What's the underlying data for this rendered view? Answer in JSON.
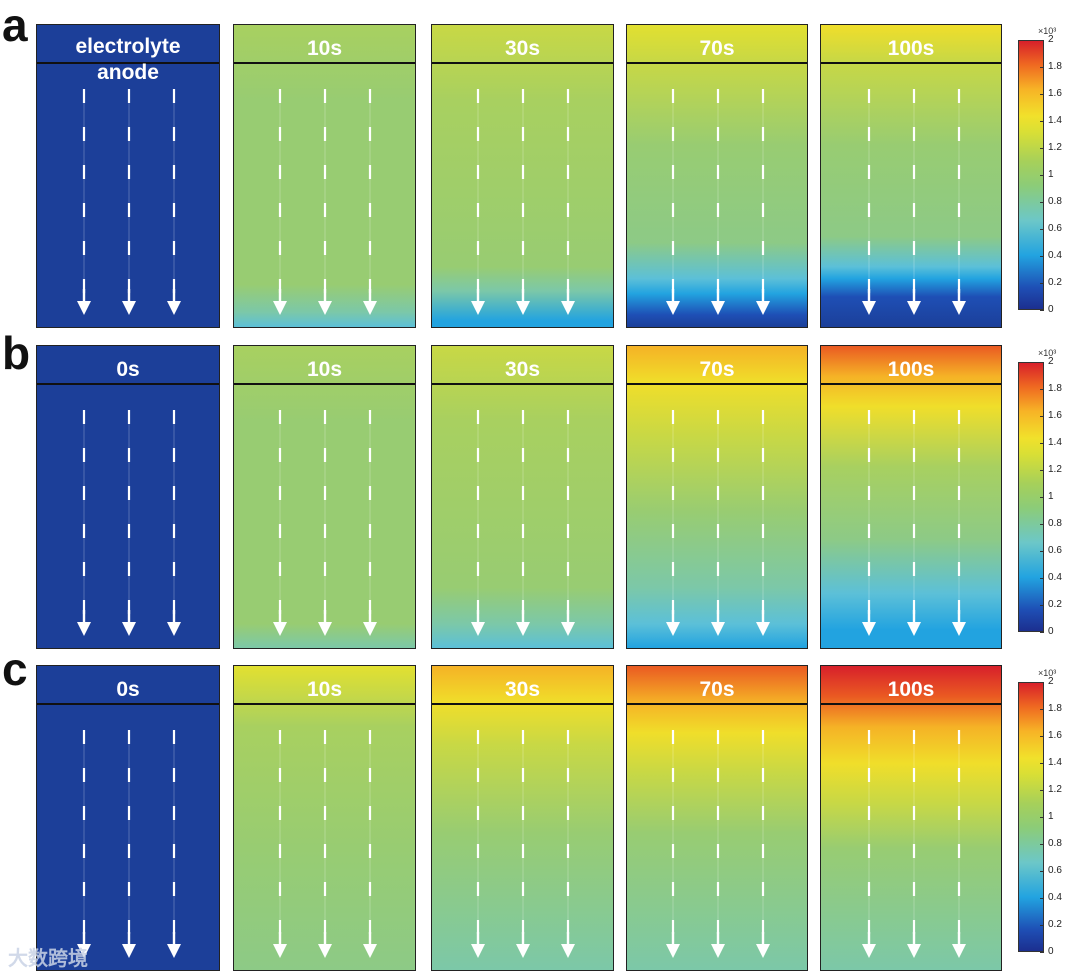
{
  "colors": {
    "c0": "#1c3f99",
    "c02": "#1e4fb5",
    "c04": "#22a3e0",
    "c06": "#5cc0d8",
    "c08": "#7cc8a8",
    "c09": "#8dca86",
    "c10": "#98cc72",
    "c11": "#a8d060",
    "c12": "#c8d845",
    "c13": "#e2e030",
    "c14": "#f0de2a",
    "c16": "#f5b226",
    "c18": "#ea5a22",
    "c20": "#d7202b"
  },
  "rows": [
    {
      "label": "a",
      "panels": [
        {
          "title": "electrolyte",
          "subtitle": "anode",
          "stops": [
            [
              "c0",
              0
            ],
            [
              "c0",
              100
            ]
          ]
        },
        {
          "title": "10s",
          "stops": [
            [
              "c11",
              0
            ],
            [
              "c10",
              25
            ],
            [
              "c10",
              86
            ],
            [
              "c08",
              95
            ],
            [
              "c06",
              100
            ]
          ]
        },
        {
          "title": "30s",
          "stops": [
            [
              "c12",
              0
            ],
            [
              "c11",
              25
            ],
            [
              "c10",
              80
            ],
            [
              "c08",
              88
            ],
            [
              "c04",
              98
            ],
            [
              "c04",
              100
            ]
          ]
        },
        {
          "title": "70s",
          "stops": [
            [
              "c13",
              0
            ],
            [
              "c12",
              12
            ],
            [
              "c10",
              40
            ],
            [
              "c09",
              72
            ],
            [
              "c06",
              84
            ],
            [
              "c04",
              89
            ],
            [
              "c02",
              96
            ],
            [
              "c0",
              100
            ]
          ]
        },
        {
          "title": "100s",
          "stops": [
            [
              "c14",
              0
            ],
            [
              "c12",
              12
            ],
            [
              "c10",
              40
            ],
            [
              "c09",
              70
            ],
            [
              "c06",
              80
            ],
            [
              "c04",
              84
            ],
            [
              "c02",
              90
            ],
            [
              "c0",
              100
            ]
          ]
        }
      ]
    },
    {
      "label": "b",
      "panels": [
        {
          "title": "0s",
          "stops": [
            [
              "c0",
              0
            ],
            [
              "c0",
              100
            ]
          ]
        },
        {
          "title": "10s",
          "stops": [
            [
              "c11",
              0
            ],
            [
              "c10",
              25
            ],
            [
              "c10",
              92
            ],
            [
              "c08",
              100
            ]
          ]
        },
        {
          "title": "30s",
          "stops": [
            [
              "c12",
              0
            ],
            [
              "c11",
              25
            ],
            [
              "c10",
              80
            ],
            [
              "c08",
              92
            ],
            [
              "c06",
              100
            ]
          ]
        },
        {
          "title": "70s",
          "stops": [
            [
              "c16",
              0
            ],
            [
              "c14",
              12
            ],
            [
              "c12",
              30
            ],
            [
              "c10",
              55
            ],
            [
              "c08",
              80
            ],
            [
              "c06",
              92
            ],
            [
              "c04",
              100
            ]
          ]
        },
        {
          "title": "100s",
          "stops": [
            [
              "c18",
              0
            ],
            [
              "c16",
              10
            ],
            [
              "c14",
              20
            ],
            [
              "c11",
              40
            ],
            [
              "c09",
              64
            ],
            [
              "c06",
              82
            ],
            [
              "c04",
              94
            ],
            [
              "c04",
              100
            ]
          ]
        }
      ]
    },
    {
      "label": "c",
      "panels": [
        {
          "title": "0s",
          "stops": [
            [
              "c0",
              0
            ],
            [
              "c0",
              100
            ]
          ]
        },
        {
          "title": "10s",
          "stops": [
            [
              "c13",
              0
            ],
            [
              "c11",
              20
            ],
            [
              "c10",
              60
            ],
            [
              "c09",
              100
            ]
          ]
        },
        {
          "title": "30s",
          "stops": [
            [
              "c16",
              0
            ],
            [
              "c14",
              12
            ],
            [
              "c12",
              26
            ],
            [
              "c10",
              55
            ],
            [
              "c08",
              100
            ]
          ]
        },
        {
          "title": "70s",
          "stops": [
            [
              "c18",
              0
            ],
            [
              "c16",
              12
            ],
            [
              "c14",
              22
            ],
            [
              "c12",
              35
            ],
            [
              "c10",
              55
            ],
            [
              "c08",
              100
            ]
          ]
        },
        {
          "title": "100s",
          "stops": [
            [
              "c20",
              0
            ],
            [
              "c18",
              10
            ],
            [
              "c16",
              20
            ],
            [
              "c14",
              32
            ],
            [
              "c12",
              45
            ],
            [
              "c10",
              60
            ],
            [
              "c08",
              100
            ]
          ]
        }
      ]
    }
  ],
  "colorbar": {
    "exponent": "×10³",
    "ticks": [
      "2",
      "1.8",
      "1.6",
      "1.4",
      "1.2",
      "1",
      "0.8",
      "0.6",
      "0.4",
      "0.2",
      "0"
    ]
  },
  "watermark": "大数跨境"
}
